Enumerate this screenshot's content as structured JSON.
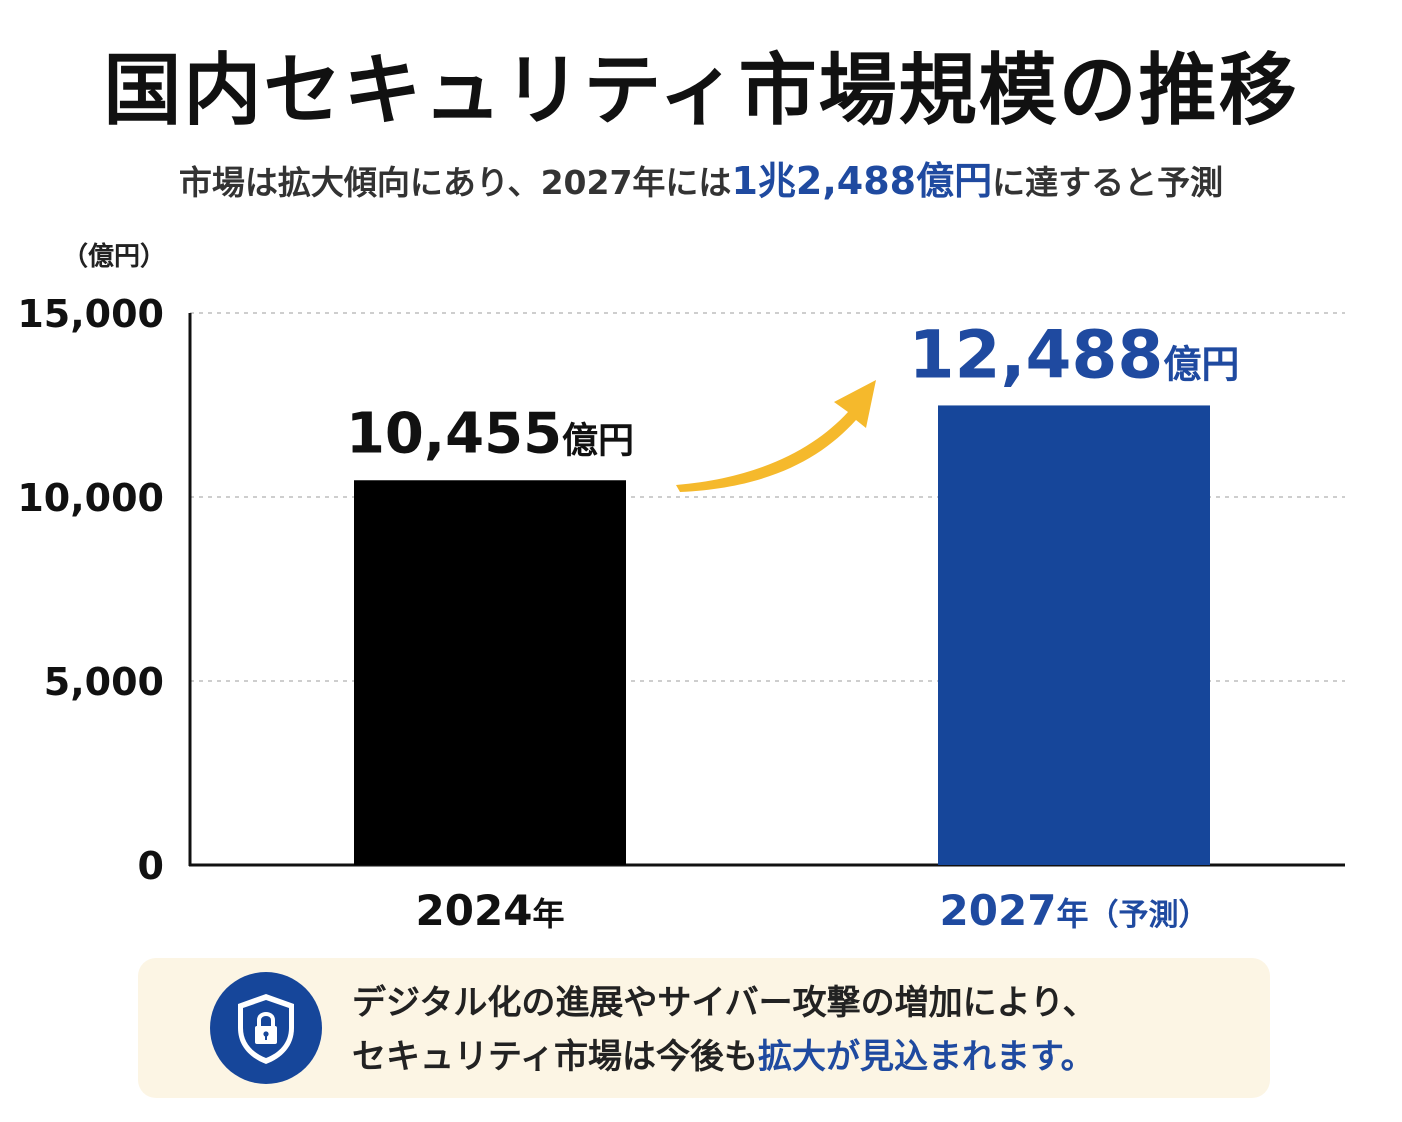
{
  "title": "国内セキュリティ市場規模の推移",
  "subtitle": {
    "before": "市場は拡大傾向にあり、2027年には",
    "highlight": "1兆2,488億円",
    "after": "に達すると予測"
  },
  "unit_label": "（億円）",
  "colors": {
    "accent_blue": "#16469a",
    "bar_black": "#000000",
    "arrow_yellow": "#f5b92c",
    "note_bg": "#fcf5e4"
  },
  "chart_data": {
    "type": "bar",
    "categories": [
      "2024年",
      "2027年（予測）"
    ],
    "category_parts": [
      {
        "year": "2024",
        "suffix": "年",
        "note": ""
      },
      {
        "year": "2027",
        "suffix": "年",
        "note": "（予測）"
      }
    ],
    "values": [
      10455,
      12488
    ],
    "value_labels": [
      {
        "number": "10,455",
        "unit": "億円"
      },
      {
        "number": "12,488",
        "unit": "億円"
      }
    ],
    "bar_colors": [
      "#000000",
      "#16469a"
    ],
    "ylim": [
      0,
      15000
    ],
    "yticks": [
      0,
      5000,
      10000,
      15000
    ],
    "ytick_labels": [
      "0",
      "5,000",
      "10,000",
      "15,000"
    ],
    "ylabel": "（億円）",
    "grid": true,
    "annotation": "arrow-up-right"
  },
  "note": {
    "icon": "shield-lock-icon",
    "line1": "デジタル化の進展やサイバー攻撃の増加により、",
    "line2_before": "セキュリティ市場は今後も",
    "line2_highlight": "拡大が見込まれます。"
  }
}
